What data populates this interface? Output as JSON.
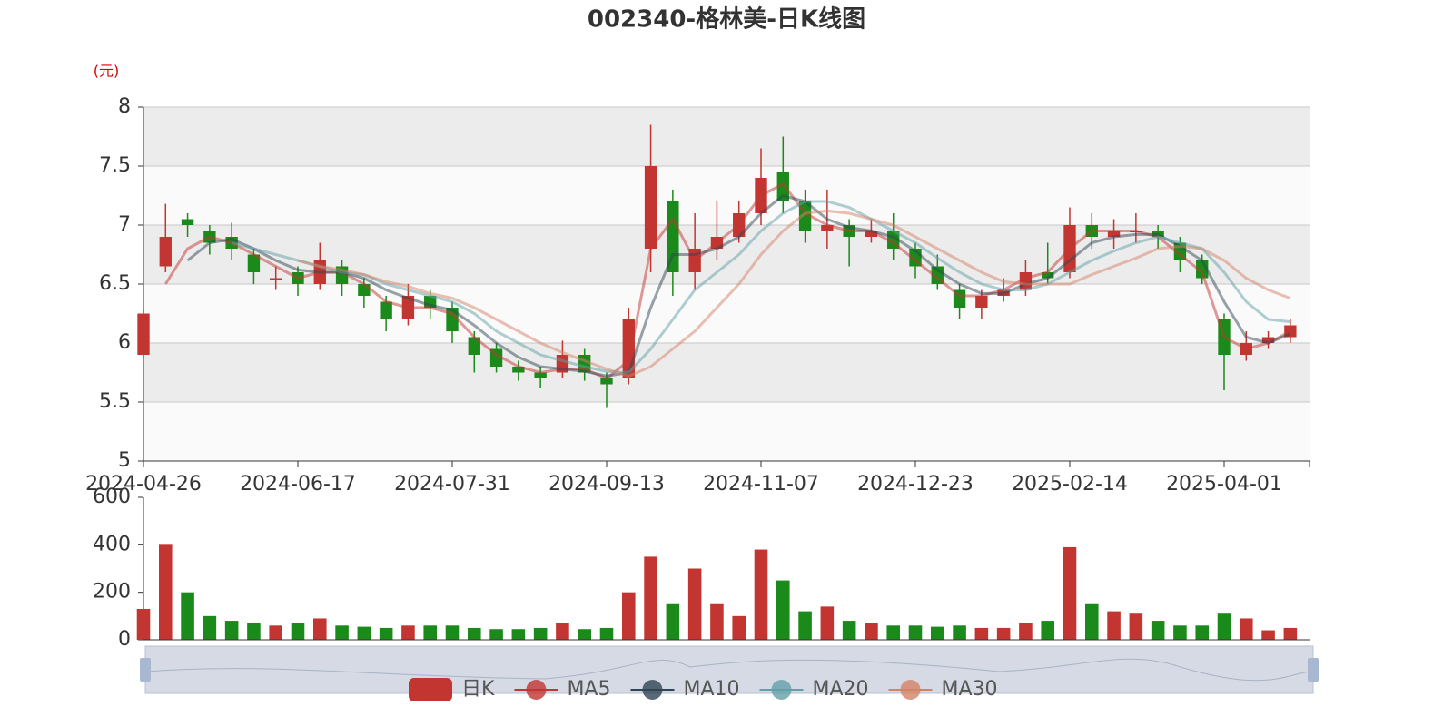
{
  "chart_data": [
    {
      "type": "candlestick",
      "title": "002340-格林美-日K线图",
      "y_label": "(元)",
      "name": "日K",
      "up_color": "#c23531",
      "down_color": "#1a8a1a",
      "categories": [
        "2024-04-26",
        null,
        null,
        null,
        null,
        null,
        null,
        "2024-06-17",
        null,
        null,
        null,
        null,
        null,
        null,
        "2024-07-31",
        null,
        null,
        null,
        null,
        null,
        null,
        "2024-09-13",
        null,
        null,
        null,
        null,
        null,
        null,
        "2024-11-07",
        null,
        null,
        null,
        null,
        null,
        null,
        "2024-12-23",
        null,
        null,
        null,
        null,
        null,
        null,
        "2025-02-14",
        null,
        null,
        null,
        null,
        null,
        null,
        "2025-04-01",
        null,
        null,
        null
      ],
      "open": [
        5.9,
        6.65,
        7.05,
        6.95,
        6.9,
        6.75,
        6.55,
        6.6,
        6.5,
        6.65,
        6.5,
        6.35,
        6.2,
        6.4,
        6.3,
        6.05,
        5.95,
        5.8,
        5.75,
        5.75,
        5.9,
        5.7,
        5.7,
        6.8,
        7.2,
        6.6,
        6.8,
        6.9,
        7.1,
        7.45,
        7.2,
        6.95,
        7.0,
        6.9,
        6.95,
        6.8,
        6.65,
        6.45,
        6.3,
        6.4,
        6.45,
        6.6,
        6.6,
        7.0,
        6.9,
        6.95,
        6.95,
        6.85,
        6.7,
        6.2,
        5.9,
        6.0,
        6.05
      ],
      "close": [
        6.25,
        6.9,
        7.0,
        6.85,
        6.8,
        6.6,
        6.55,
        6.5,
        6.7,
        6.5,
        6.4,
        6.2,
        6.4,
        6.3,
        6.1,
        5.9,
        5.8,
        5.75,
        5.7,
        5.9,
        5.75,
        5.65,
        6.2,
        7.5,
        6.6,
        6.8,
        6.9,
        7.1,
        7.4,
        7.2,
        6.95,
        7.0,
        6.9,
        6.95,
        6.8,
        6.65,
        6.5,
        6.3,
        6.4,
        6.45,
        6.6,
        6.55,
        7.0,
        6.9,
        6.95,
        6.95,
        6.9,
        6.7,
        6.55,
        5.9,
        6.0,
        6.05,
        6.15
      ],
      "low": [
        5.88,
        6.6,
        6.9,
        6.75,
        6.7,
        6.5,
        6.45,
        6.4,
        6.45,
        6.4,
        6.3,
        6.1,
        6.15,
        6.2,
        6.0,
        5.75,
        5.75,
        5.68,
        5.62,
        5.7,
        5.68,
        5.45,
        5.65,
        6.6,
        6.4,
        6.45,
        6.7,
        6.85,
        7.0,
        7.1,
        6.85,
        6.8,
        6.65,
        6.85,
        6.7,
        6.55,
        6.45,
        6.2,
        6.2,
        6.35,
        6.4,
        6.5,
        6.55,
        6.8,
        6.8,
        6.85,
        6.8,
        6.6,
        6.5,
        5.6,
        5.85,
        5.95,
        6.0
      ],
      "high": [
        6.28,
        7.18,
        7.1,
        7.0,
        7.02,
        6.8,
        6.65,
        6.65,
        6.85,
        6.7,
        6.55,
        6.4,
        6.5,
        6.45,
        6.35,
        6.1,
        6.0,
        5.85,
        5.8,
        6.02,
        5.95,
        5.75,
        6.3,
        7.85,
        7.3,
        7.1,
        7.2,
        7.2,
        7.65,
        7.75,
        7.3,
        7.3,
        7.05,
        7.05,
        7.1,
        6.85,
        6.75,
        6.5,
        6.45,
        6.55,
        6.7,
        6.85,
        7.15,
        7.1,
        7.05,
        7.1,
        7.0,
        6.9,
        6.75,
        6.25,
        6.1,
        6.1,
        6.2
      ],
      "series": [
        {
          "name": "MA5",
          "color": "#c23531",
          "values": [
            null,
            6.5,
            6.8,
            6.9,
            6.85,
            6.75,
            6.65,
            6.55,
            6.6,
            6.6,
            6.5,
            6.35,
            6.3,
            6.3,
            6.25,
            6.05,
            5.9,
            5.8,
            5.75,
            5.78,
            5.78,
            5.7,
            5.85,
            6.8,
            7.05,
            6.7,
            6.85,
            7.0,
            7.25,
            7.35,
            7.1,
            7.0,
            6.95,
            6.95,
            6.85,
            6.7,
            6.55,
            6.4,
            6.4,
            6.45,
            6.55,
            6.6,
            6.8,
            6.95,
            6.95,
            6.95,
            6.9,
            6.75,
            6.6,
            6.05,
            5.95,
            6.0,
            6.1
          ]
        },
        {
          "name": "MA10",
          "color": "#2f4554",
          "values": [
            null,
            null,
            6.7,
            6.85,
            6.88,
            6.8,
            6.7,
            6.62,
            6.6,
            6.6,
            6.55,
            6.45,
            6.38,
            6.32,
            6.28,
            6.15,
            6.0,
            5.88,
            5.8,
            5.78,
            5.76,
            5.72,
            5.75,
            6.3,
            6.75,
            6.75,
            6.8,
            6.9,
            7.1,
            7.25,
            7.2,
            7.05,
            6.98,
            6.95,
            6.9,
            6.78,
            6.62,
            6.5,
            6.42,
            6.42,
            6.5,
            6.55,
            6.7,
            6.85,
            6.9,
            6.92,
            6.92,
            6.82,
            6.7,
            6.35,
            6.05,
            6.0,
            6.08
          ]
        },
        {
          "name": "MA20",
          "color": "#61a0a8",
          "values": [
            null,
            null,
            null,
            null,
            6.85,
            6.8,
            6.75,
            6.7,
            6.65,
            6.6,
            6.58,
            6.5,
            6.45,
            6.4,
            6.35,
            6.25,
            6.1,
            6.0,
            5.9,
            5.85,
            5.8,
            5.76,
            5.75,
            5.95,
            6.2,
            6.45,
            6.6,
            6.75,
            6.95,
            7.1,
            7.2,
            7.2,
            7.15,
            7.05,
            6.95,
            6.85,
            6.72,
            6.6,
            6.5,
            6.45,
            6.45,
            6.5,
            6.6,
            6.7,
            6.78,
            6.85,
            6.9,
            6.85,
            6.8,
            6.6,
            6.35,
            6.2,
            6.18
          ]
        },
        {
          "name": "MA30",
          "color": "#d48265",
          "values": [
            null,
            null,
            null,
            null,
            null,
            null,
            null,
            6.7,
            6.65,
            6.62,
            6.58,
            6.52,
            6.48,
            6.42,
            6.38,
            6.3,
            6.2,
            6.1,
            6.0,
            5.92,
            5.85,
            5.78,
            5.72,
            5.8,
            5.95,
            6.1,
            6.3,
            6.5,
            6.75,
            6.95,
            7.1,
            7.12,
            7.1,
            7.05,
            7.0,
            6.9,
            6.8,
            6.7,
            6.6,
            6.52,
            6.5,
            6.5,
            6.5,
            6.58,
            6.65,
            6.72,
            6.8,
            6.82,
            6.8,
            6.7,
            6.55,
            6.45,
            6.38
          ]
        }
      ],
      "ylim": [
        5,
        8
      ],
      "yticks": [
        5,
        5.5,
        6,
        6.5,
        7,
        7.5,
        8
      ],
      "grid": true
    },
    {
      "type": "bar",
      "values": [
        130,
        400,
        200,
        100,
        80,
        70,
        60,
        70,
        90,
        60,
        55,
        50,
        60,
        60,
        60,
        50,
        45,
        45,
        50,
        70,
        45,
        50,
        200,
        350,
        150,
        300,
        150,
        100,
        380,
        250,
        120,
        140,
        80,
        70,
        60,
        60,
        55,
        60,
        50,
        50,
        70,
        80,
        390,
        150,
        120,
        110,
        80,
        60,
        60,
        110,
        90,
        40,
        50
      ],
      "ylim": [
        0,
        600
      ],
      "yticks": [
        0,
        200,
        400,
        600
      ]
    }
  ]
}
